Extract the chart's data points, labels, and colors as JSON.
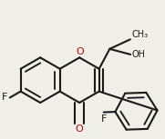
{
  "bg_color": "#f0f0e8",
  "bond_color": "#1a1a1a",
  "bond_width": 1.5,
  "atom_colors": {
    "O": "#cc0000",
    "F": "#1a1a1a"
  },
  "font_size_atom": 8,
  "font_size_label": 7,
  "s": 0.17
}
